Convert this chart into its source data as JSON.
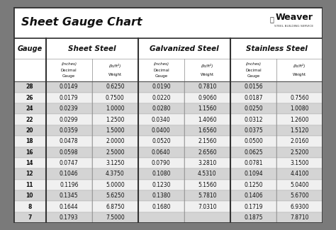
{
  "title": "Sheet Gauge Chart",
  "bg_outer": "#7a7a7a",
  "bg_white": "#ffffff",
  "bg_title": "#ffffff",
  "bg_header": "#ffffff",
  "bg_subheader": "#ffffff",
  "bg_row_odd": "#d4d4d4",
  "bg_row_even": "#f0f0f0",
  "gauges": [
    28,
    26,
    24,
    22,
    20,
    18,
    16,
    14,
    12,
    11,
    10,
    8,
    7
  ],
  "sheet_steel_decimal": [
    "0.0149",
    "0.0179",
    "0.0239",
    "0.0299",
    "0.0359",
    "0.0478",
    "0.0598",
    "0.0747",
    "0.1046",
    "0.1196",
    "0.1345",
    "0.1644",
    "0.1793"
  ],
  "sheet_steel_weight": [
    "0.6250",
    "0.7500",
    "1.0000",
    "1.2500",
    "1.5000",
    "2.0000",
    "2.5000",
    "3.1250",
    "4.3750",
    "5.0000",
    "5.6250",
    "6.8750",
    "7.5000"
  ],
  "galvanized_decimal": [
    "0.0190",
    "0.0220",
    "0.0280",
    "0.0340",
    "0.0400",
    "0.0520",
    "0.0640",
    "0.0790",
    "0.1080",
    "0.1230",
    "0.1380",
    "0.1680",
    ""
  ],
  "galvanized_weight": [
    "0.7810",
    "0.9060",
    "1.1560",
    "1.4060",
    "1.6560",
    "2.1560",
    "2.6560",
    "3.2810",
    "4.5310",
    "5.1560",
    "5.7810",
    "7.0310",
    ""
  ],
  "stainless_decimal": [
    "0.0156",
    "0.0187",
    "0.0250",
    "0.0312",
    "0.0375",
    "0.0500",
    "0.0625",
    "0.0781",
    "0.1094",
    "0.1250",
    "0.1406",
    "0.1719",
    "0.1875"
  ],
  "stainless_weight": [
    "",
    "0.7560",
    "1.0080",
    "1.2600",
    "1.5120",
    "2.0160",
    "2.5200",
    "3.1500",
    "4.4100",
    "5.0400",
    "5.6700",
    "6.9300",
    "7.8710"
  ],
  "border_color": "#555555",
  "thick_border": "#333333",
  "cell_border": "#aaaaaa"
}
